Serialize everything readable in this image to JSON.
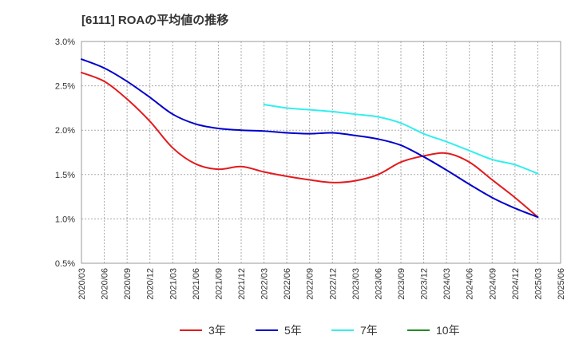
{
  "chart_data": {
    "type": "line",
    "title": "[6111]  ROAの平均値の推移",
    "xlabel": "",
    "ylabel": "",
    "ylim": [
      0.5,
      3.0
    ],
    "y_ticks": [
      "0.5%",
      "1.0%",
      "1.5%",
      "2.0%",
      "2.5%",
      "3.0%"
    ],
    "y_tick_values": [
      0.5,
      1.0,
      1.5,
      2.0,
      2.5,
      3.0
    ],
    "categories": [
      "2020/03",
      "2020/06",
      "2020/09",
      "2020/12",
      "2021/03",
      "2021/06",
      "2021/09",
      "2021/12",
      "2022/03",
      "2022/06",
      "2022/09",
      "2022/12",
      "2023/03",
      "2023/06",
      "2023/09",
      "2023/12",
      "2024/03",
      "2024/06",
      "2024/09",
      "2024/12",
      "2025/03",
      "2025/06"
    ],
    "grid": "vertical-and-horizontal dotted",
    "legend_position": "bottom",
    "series": [
      {
        "name": "3年",
        "color": "#e31a1c",
        "values": [
          2.65,
          2.55,
          2.35,
          2.1,
          1.8,
          1.62,
          1.56,
          1.59,
          1.53,
          1.48,
          1.44,
          1.41,
          1.43,
          1.5,
          1.64,
          1.71,
          1.74,
          1.64,
          1.44,
          1.24,
          1.02,
          null
        ]
      },
      {
        "name": "5年",
        "color": "#0000cc",
        "values": [
          2.8,
          2.7,
          2.55,
          2.37,
          2.18,
          2.07,
          2.02,
          2.0,
          1.99,
          1.97,
          1.96,
          1.97,
          1.94,
          1.9,
          1.83,
          1.7,
          1.55,
          1.39,
          1.24,
          1.12,
          1.02,
          null
        ]
      },
      {
        "name": "7年",
        "color": "#33eeee",
        "values": [
          null,
          null,
          null,
          null,
          null,
          null,
          null,
          null,
          2.29,
          2.25,
          2.23,
          2.21,
          2.18,
          2.15,
          2.08,
          1.96,
          1.87,
          1.77,
          1.67,
          1.61,
          1.51,
          null
        ]
      },
      {
        "name": "10年",
        "color": "#228b22",
        "values": [
          null,
          null,
          null,
          null,
          null,
          null,
          null,
          null,
          null,
          null,
          null,
          null,
          null,
          null,
          null,
          null,
          null,
          null,
          null,
          null,
          null,
          null
        ]
      }
    ]
  }
}
